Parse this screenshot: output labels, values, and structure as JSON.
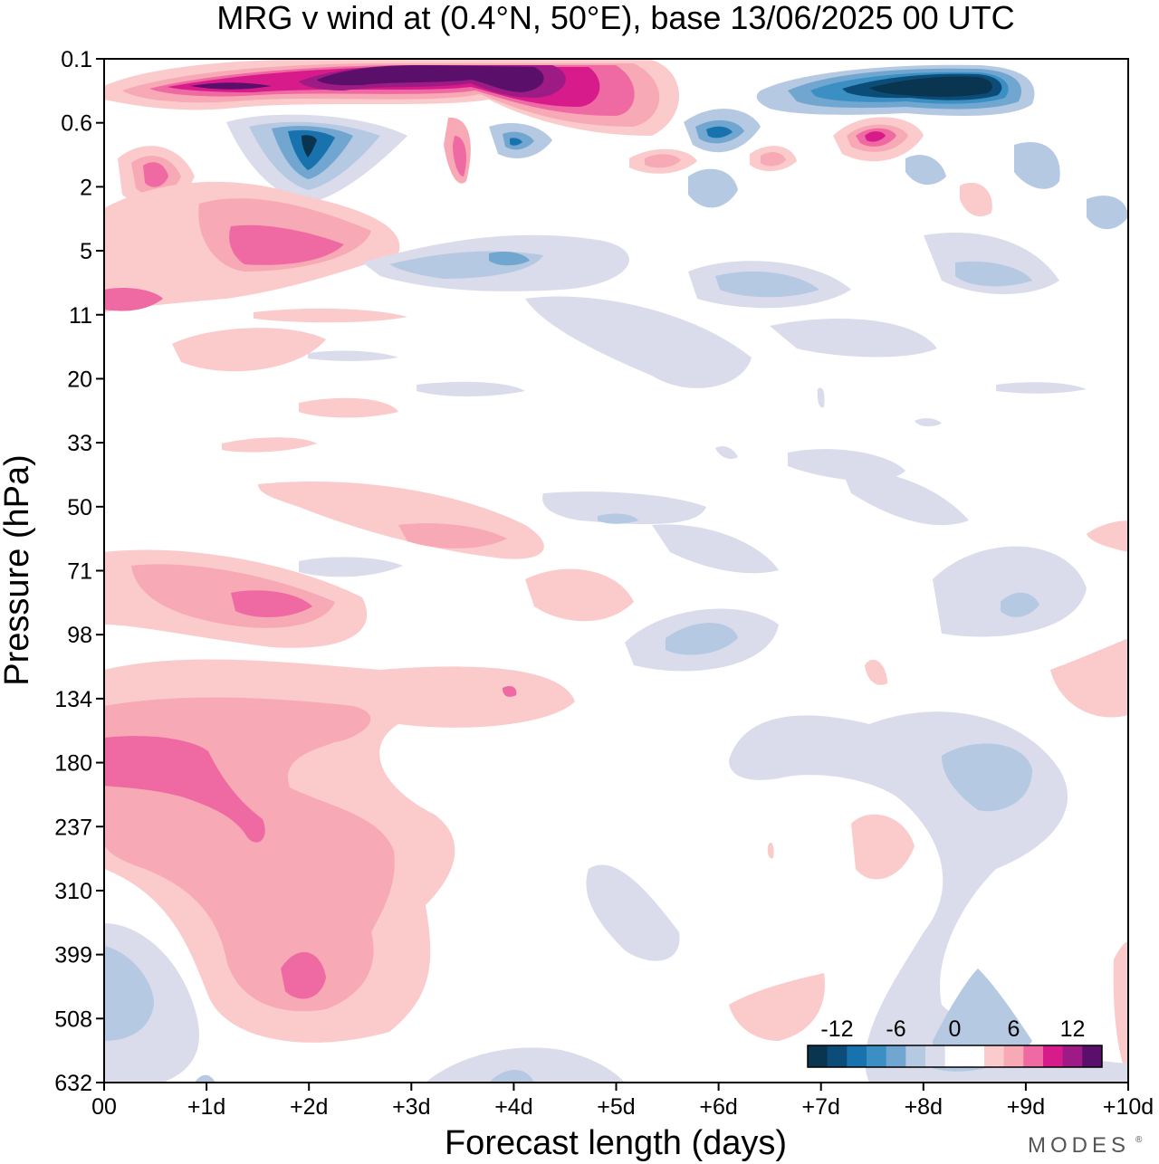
{
  "chart_data": {
    "type": "heatmap",
    "title": "MRG v wind at (0.4°N, 50°E),  base 13/06/2025  00 UTC",
    "xlabel": "Forecast length (days)",
    "ylabel": "Pressure (hPa)",
    "x_ticks": [
      "00",
      "+1d",
      "+2d",
      "+3d",
      "+4d",
      "+5d",
      "+6d",
      "+7d",
      "+8d",
      "+9d",
      "+10d"
    ],
    "y_ticks": [
      "0.1",
      "0.6",
      "2",
      "5",
      "11",
      "20",
      "33",
      "50",
      "71",
      "98",
      "134",
      "180",
      "237",
      "310",
      "399",
      "508",
      "632"
    ],
    "xlim_days": [
      0,
      10
    ],
    "y_axis": "pressure level index (nonlinear)",
    "colorbar": {
      "tick_labels": [
        "-12",
        "-6",
        "0",
        "6",
        "12"
      ],
      "levels": [
        -15,
        -13.5,
        -12,
        -10.5,
        -9,
        -7.5,
        -6,
        -4.5,
        -3,
        -1.5,
        0,
        1.5,
        3,
        4.5,
        6,
        7.5,
        9,
        10.5,
        12,
        13.5,
        15
      ],
      "colors": [
        "#0a3550",
        "#0b4d78",
        "#1872ad",
        "#3b8fc2",
        "#71a6d0",
        "#b5c9e3",
        "#dadcec",
        "#ffffff",
        "#ffffff",
        "#fbcaca",
        "#f7a9b5",
        "#ef6aa2",
        "#d81b8a",
        "#9e1a84",
        "#5a0f6b"
      ]
    },
    "features": [
      {
        "name": "upper positive band",
        "x_days": [
          0.5,
          5.0
        ],
        "pressure_hPa": [
          0.1,
          0.6
        ],
        "peak_v": 15
      },
      {
        "name": "upper negative band",
        "x_days": [
          6.5,
          9.0
        ],
        "pressure_hPa": [
          0.1,
          0.6
        ],
        "peak_v": -15
      },
      {
        "name": "negative core",
        "x_days": [
          2.0,
          2.0
        ],
        "pressure_hPa": [
          0.6,
          2
        ],
        "peak_v": -13
      },
      {
        "name": "positive core",
        "x_days": [
          7.5,
          7.5
        ],
        "pressure_hPa": [
          0.6,
          2
        ],
        "peak_v": 11
      },
      {
        "name": "low-level positive",
        "x_days": [
          0,
          3.0
        ],
        "pressure_hPa": [
          71,
          508
        ],
        "peak_v": 8
      },
      {
        "name": "low-level negative",
        "x_days": [
          8.0,
          9.5
        ],
        "pressure_hPa": [
          180,
          632
        ],
        "peak_v": -5
      }
    ]
  },
  "branding": {
    "text": "MODES",
    "mark": "®"
  }
}
